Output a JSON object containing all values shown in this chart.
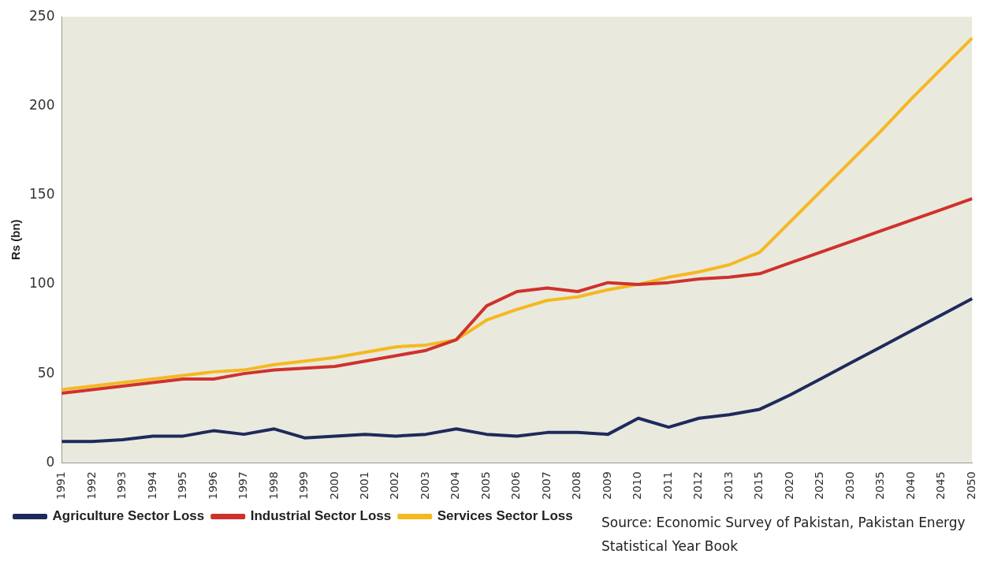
{
  "chart_data": {
    "type": "line",
    "ylabel": "Rs (bn)",
    "categories": [
      "1991",
      "1992",
      "1993",
      "1994",
      "1995",
      "1996",
      "1997",
      "1998",
      "1999",
      "2000",
      "2001",
      "2002",
      "2003",
      "2004",
      "2005",
      "2006",
      "2007",
      "2008",
      "2009",
      "2010",
      "2011",
      "2012",
      "2013",
      "2015",
      "2020",
      "2025",
      "2030",
      "2035",
      "2040",
      "2045",
      "2050"
    ],
    "series": [
      {
        "name": "Agriculture Sector Loss",
        "color": "#1f2a5c",
        "values": [
          12,
          12,
          13,
          15,
          15,
          18,
          16,
          19,
          14,
          15,
          16,
          15,
          16,
          19,
          16,
          15,
          17,
          17,
          16,
          25,
          20,
          25,
          27,
          30,
          38,
          47,
          56,
          65,
          74,
          83,
          92
        ]
      },
      {
        "name": "Industrial Sector Loss",
        "color": "#d0312d",
        "values": [
          39,
          41,
          43,
          45,
          47,
          47,
          50,
          52,
          53,
          54,
          57,
          60,
          63,
          69,
          88,
          96,
          98,
          96,
          101,
          100,
          101,
          103,
          104,
          106,
          112,
          118,
          124,
          130,
          136,
          142,
          148
        ]
      },
      {
        "name": "Services Sector Loss",
        "color": "#f5b820",
        "values": [
          41,
          43,
          45,
          47,
          49,
          51,
          52,
          55,
          57,
          59,
          62,
          65,
          66,
          69,
          80,
          86,
          91,
          93,
          97,
          100,
          104,
          107,
          111,
          118,
          135,
          152,
          169,
          186,
          204,
          221,
          238
        ]
      }
    ],
    "ylim": [
      0,
      250
    ],
    "yticks": [
      0,
      50,
      100,
      150,
      200,
      250
    ],
    "grid": false,
    "legend": "bottom left",
    "marker": "none",
    "line_style": "solid",
    "annotations": [
      "Source: Economic Survey of Pakistan, Pakistan Energy Statistical Year Book"
    ]
  }
}
